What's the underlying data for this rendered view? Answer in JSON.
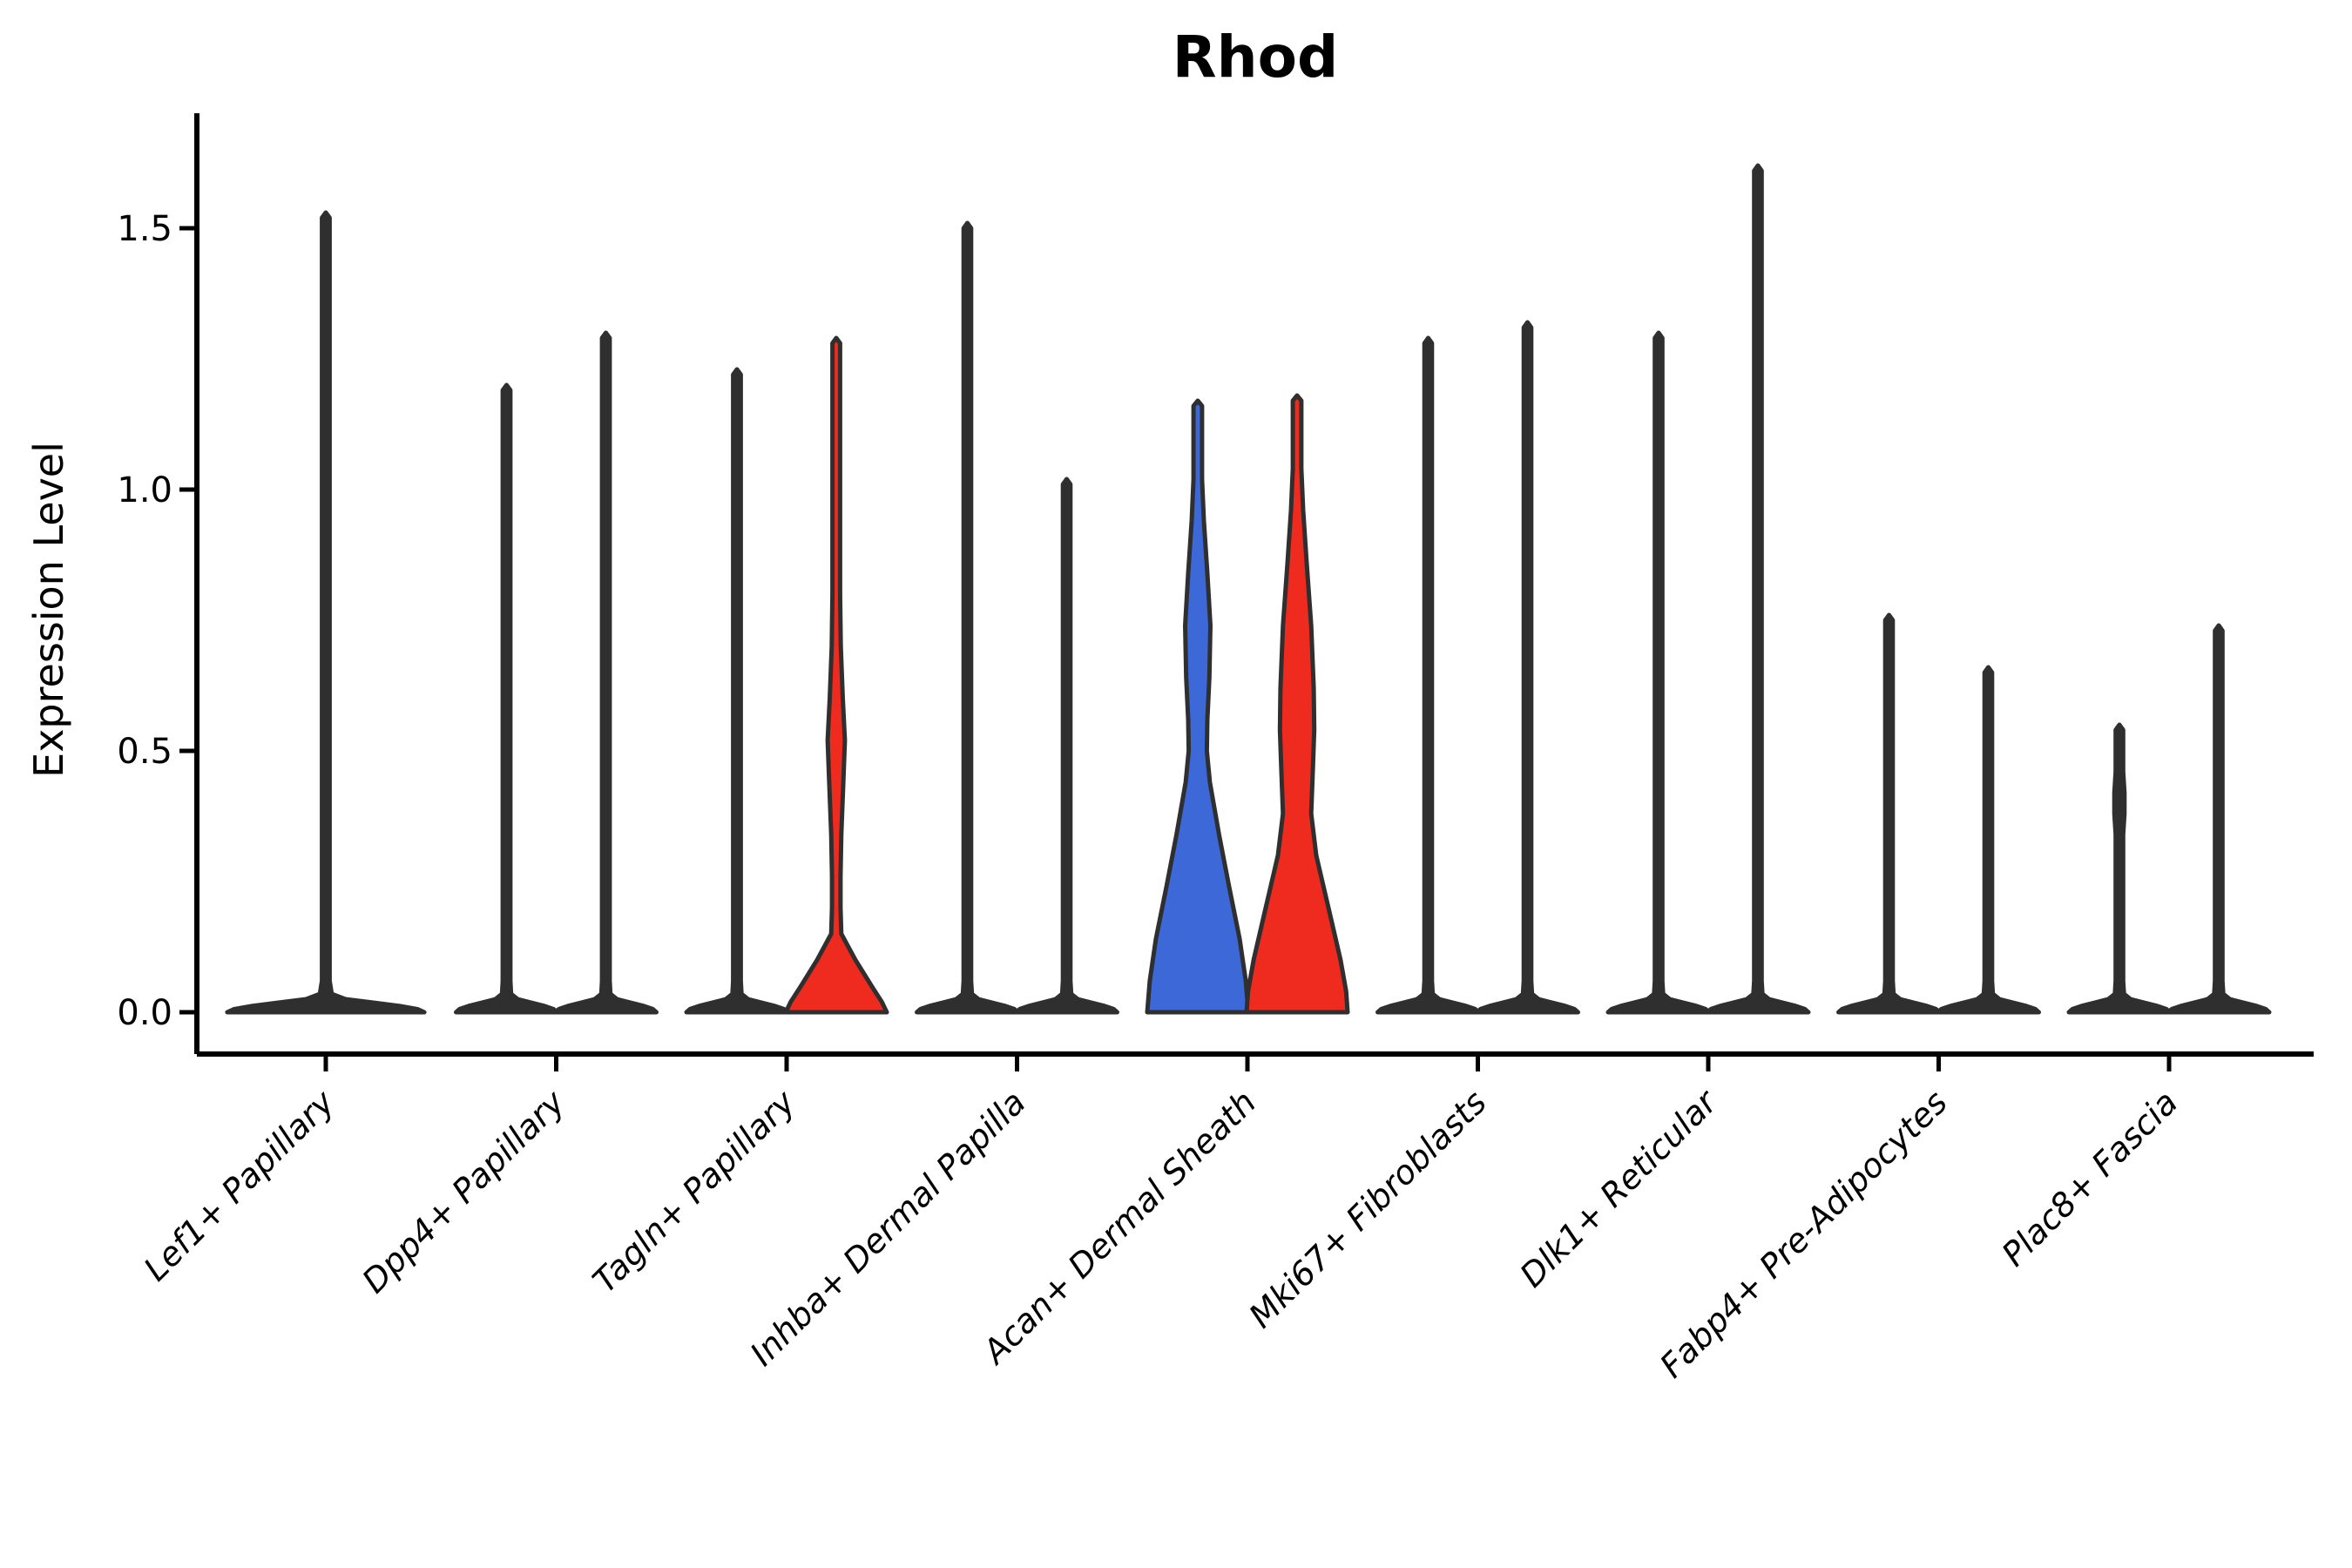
{
  "title": "Rhod",
  "axes": {
    "y_label": "Expression Level",
    "y_ticks": [
      {
        "label": "0.0",
        "value": 0.0
      },
      {
        "label": "0.5",
        "value": 0.5
      },
      {
        "label": "1.0",
        "value": 1.0
      },
      {
        "label": "1.5",
        "value": 1.5
      }
    ],
    "x_categories": [
      "Lef1+ Papillary",
      "Dpp4+ Papillary",
      "Tagln+ Papillary",
      "Inhba+ Dermal Papilla",
      "Acan+ Dermal Sheath",
      "Mki67+ Fibroblasts",
      "Dlk1+ Reticular",
      "Fabp4+ Pre-Adipocytes",
      "Plac8+ Fascia"
    ]
  },
  "colors": {
    "blue_fill": "#3C69D7",
    "red_fill": "#EE2B1E",
    "outline": "#2F2F2F",
    "text": "#000000",
    "background": "#FFFFFF"
  },
  "chart_data": {
    "type": "violin",
    "title": "Rhod",
    "ylabel": "Expression Level",
    "ylim": [
      0,
      1.72
    ],
    "yticks": [
      0.0,
      0.5,
      1.0,
      1.5
    ],
    "grid": false,
    "legend": "none",
    "x_tick_rotation": 45,
    "categories": [
      "Lef1+ Papillary",
      "Dpp4+ Papillary",
      "Tagln+ Papillary",
      "Inhba+ Dermal Papilla",
      "Acan+ Dermal Sheath",
      "Mki67+ Fibroblasts",
      "Dlk1+ Reticular",
      "Fabp4+ Pre-Adipocytes",
      "Plac8+ Fascia"
    ],
    "violins": [
      {
        "category": "Lef1+ Papillary",
        "side": "center",
        "max_expression": 1.53,
        "body_visible": false,
        "fill": "#2F2F2F",
        "width_scale": 1.95,
        "profile": [
          [
            1.53,
            0
          ],
          [
            1.52,
            0.039
          ],
          [
            0.06,
            0.039
          ],
          [
            0.035,
            0.06
          ],
          [
            0.025,
            0.2
          ],
          [
            0.018,
            0.5
          ],
          [
            0.012,
            0.75
          ],
          [
            0.006,
            0.93
          ],
          [
            0,
            1
          ]
        ]
      },
      {
        "category": "Dpp4+ Papillary",
        "side": "left",
        "max_expression": 1.2,
        "body_visible": false,
        "fill": "#2F2F2F",
        "width_scale": 1.0,
        "profile": [
          [
            1.2,
            0
          ],
          [
            1.19,
            0.075
          ],
          [
            0.06,
            0.075
          ],
          [
            0.035,
            0.09
          ],
          [
            0.025,
            0.22
          ],
          [
            0.018,
            0.5
          ],
          [
            0.012,
            0.75
          ],
          [
            0.006,
            0.93
          ],
          [
            0,
            1
          ]
        ]
      },
      {
        "category": "Dpp4+ Papillary",
        "side": "right",
        "max_expression": 1.3,
        "body_visible": false,
        "fill": "#2F2F2F",
        "width_scale": 1.0,
        "profile": [
          [
            1.3,
            0
          ],
          [
            1.29,
            0.075
          ],
          [
            0.06,
            0.075
          ],
          [
            0.035,
            0.09
          ],
          [
            0.025,
            0.22
          ],
          [
            0.018,
            0.5
          ],
          [
            0.012,
            0.75
          ],
          [
            0.006,
            0.93
          ],
          [
            0,
            1
          ]
        ]
      },
      {
        "category": "Tagln+ Papillary",
        "side": "left",
        "max_expression": 1.23,
        "body_visible": false,
        "fill": "#2F2F2F",
        "width_scale": 1.0,
        "profile": [
          [
            1.23,
            0
          ],
          [
            1.22,
            0.075
          ],
          [
            0.06,
            0.075
          ],
          [
            0.035,
            0.09
          ],
          [
            0.025,
            0.22
          ],
          [
            0.018,
            0.5
          ],
          [
            0.012,
            0.75
          ],
          [
            0.006,
            0.93
          ],
          [
            0,
            1
          ]
        ]
      },
      {
        "category": "Tagln+ Papillary",
        "side": "right",
        "max_expression": 1.29,
        "body_visible": true,
        "fill": "#EE2B1E",
        "width_scale": 1.0,
        "profile": [
          [
            1.29,
            0
          ],
          [
            1.28,
            0.075
          ],
          [
            0.8,
            0.075
          ],
          [
            0.7,
            0.09
          ],
          [
            0.6,
            0.13
          ],
          [
            0.52,
            0.17
          ],
          [
            0.44,
            0.14
          ],
          [
            0.34,
            0.1
          ],
          [
            0.26,
            0.085
          ],
          [
            0.2,
            0.085
          ],
          [
            0.15,
            0.1
          ],
          [
            0.1,
            0.38
          ],
          [
            0.05,
            0.7
          ],
          [
            0.02,
            0.9
          ],
          [
            0,
            1
          ]
        ]
      },
      {
        "category": "Inhba+ Dermal Papilla",
        "side": "left",
        "max_expression": 1.51,
        "body_visible": false,
        "fill": "#2F2F2F",
        "width_scale": 1.0,
        "profile": [
          [
            1.51,
            0
          ],
          [
            1.5,
            0.075
          ],
          [
            0.06,
            0.075
          ],
          [
            0.035,
            0.09
          ],
          [
            0.025,
            0.22
          ],
          [
            0.018,
            0.5
          ],
          [
            0.012,
            0.75
          ],
          [
            0.006,
            0.93
          ],
          [
            0,
            1
          ]
        ]
      },
      {
        "category": "Inhba+ Dermal Papilla",
        "side": "right",
        "max_expression": 1.02,
        "body_visible": false,
        "fill": "#2F2F2F",
        "width_scale": 1.0,
        "profile": [
          [
            1.02,
            0
          ],
          [
            1.01,
            0.075
          ],
          [
            0.06,
            0.075
          ],
          [
            0.035,
            0.09
          ],
          [
            0.025,
            0.22
          ],
          [
            0.018,
            0.5
          ],
          [
            0.012,
            0.75
          ],
          [
            0.006,
            0.93
          ],
          [
            0,
            1
          ]
        ]
      },
      {
        "category": "Acan+ Dermal Sheath",
        "side": "left",
        "max_expression": 1.17,
        "body_visible": true,
        "fill": "#3C69D7",
        "width_scale": 1.0,
        "profile": [
          [
            1.17,
            0
          ],
          [
            1.16,
            0.085
          ],
          [
            1.02,
            0.085
          ],
          [
            0.94,
            0.12
          ],
          [
            0.84,
            0.19
          ],
          [
            0.74,
            0.25
          ],
          [
            0.64,
            0.23
          ],
          [
            0.56,
            0.19
          ],
          [
            0.5,
            0.18
          ],
          [
            0.44,
            0.24
          ],
          [
            0.34,
            0.42
          ],
          [
            0.24,
            0.62
          ],
          [
            0.14,
            0.83
          ],
          [
            0.06,
            0.95
          ],
          [
            0,
            1
          ]
        ]
      },
      {
        "category": "Acan+ Dermal Sheath",
        "side": "right",
        "max_expression": 1.18,
        "body_visible": true,
        "fill": "#EE2B1E",
        "width_scale": 1.0,
        "profile": [
          [
            1.18,
            0
          ],
          [
            1.17,
            0.085
          ],
          [
            1.04,
            0.085
          ],
          [
            0.96,
            0.12
          ],
          [
            0.86,
            0.19
          ],
          [
            0.74,
            0.28
          ],
          [
            0.62,
            0.33
          ],
          [
            0.54,
            0.34
          ],
          [
            0.46,
            0.31
          ],
          [
            0.38,
            0.28
          ],
          [
            0.3,
            0.38
          ],
          [
            0.2,
            0.62
          ],
          [
            0.1,
            0.86
          ],
          [
            0.04,
            0.97
          ],
          [
            0,
            1
          ]
        ]
      },
      {
        "category": "Mki67+ Fibroblasts",
        "side": "left",
        "max_expression": 1.29,
        "body_visible": false,
        "fill": "#2F2F2F",
        "width_scale": 1.0,
        "profile": [
          [
            1.29,
            0
          ],
          [
            1.28,
            0.075
          ],
          [
            0.06,
            0.075
          ],
          [
            0.035,
            0.09
          ],
          [
            0.025,
            0.22
          ],
          [
            0.018,
            0.5
          ],
          [
            0.012,
            0.75
          ],
          [
            0.006,
            0.93
          ],
          [
            0,
            1
          ]
        ]
      },
      {
        "category": "Mki67+ Fibroblasts",
        "side": "right",
        "max_expression": 1.32,
        "body_visible": false,
        "fill": "#2F2F2F",
        "width_scale": 1.0,
        "profile": [
          [
            1.32,
            0
          ],
          [
            1.31,
            0.075
          ],
          [
            0.06,
            0.075
          ],
          [
            0.035,
            0.09
          ],
          [
            0.025,
            0.22
          ],
          [
            0.018,
            0.5
          ],
          [
            0.012,
            0.75
          ],
          [
            0.006,
            0.93
          ],
          [
            0,
            1
          ]
        ]
      },
      {
        "category": "Dlk1+ Reticular",
        "side": "left",
        "max_expression": 1.3,
        "body_visible": false,
        "fill": "#2F2F2F",
        "width_scale": 1.0,
        "profile": [
          [
            1.3,
            0
          ],
          [
            1.29,
            0.075
          ],
          [
            0.06,
            0.075
          ],
          [
            0.035,
            0.09
          ],
          [
            0.025,
            0.22
          ],
          [
            0.018,
            0.5
          ],
          [
            0.012,
            0.75
          ],
          [
            0.006,
            0.93
          ],
          [
            0,
            1
          ]
        ]
      },
      {
        "category": "Dlk1+ Reticular",
        "side": "right",
        "max_expression": 1.62,
        "body_visible": false,
        "fill": "#2F2F2F",
        "width_scale": 1.0,
        "profile": [
          [
            1.62,
            0
          ],
          [
            1.61,
            0.075
          ],
          [
            0.06,
            0.075
          ],
          [
            0.035,
            0.09
          ],
          [
            0.025,
            0.22
          ],
          [
            0.018,
            0.5
          ],
          [
            0.012,
            0.75
          ],
          [
            0.006,
            0.93
          ],
          [
            0,
            1
          ]
        ]
      },
      {
        "category": "Fabp4+ Pre-Adipocytes",
        "side": "left",
        "max_expression": 0.76,
        "body_visible": false,
        "fill": "#2F2F2F",
        "width_scale": 1.0,
        "profile": [
          [
            0.76,
            0
          ],
          [
            0.75,
            0.075
          ],
          [
            0.06,
            0.075
          ],
          [
            0.035,
            0.09
          ],
          [
            0.025,
            0.22
          ],
          [
            0.018,
            0.5
          ],
          [
            0.012,
            0.75
          ],
          [
            0.006,
            0.93
          ],
          [
            0,
            1
          ]
        ]
      },
      {
        "category": "Fabp4+ Pre-Adipocytes",
        "side": "right",
        "max_expression": 0.66,
        "body_visible": false,
        "fill": "#2F2F2F",
        "width_scale": 1.0,
        "profile": [
          [
            0.66,
            0
          ],
          [
            0.65,
            0.075
          ],
          [
            0.06,
            0.075
          ],
          [
            0.035,
            0.09
          ],
          [
            0.025,
            0.22
          ],
          [
            0.018,
            0.5
          ],
          [
            0.012,
            0.75
          ],
          [
            0.006,
            0.93
          ],
          [
            0,
            1
          ]
        ]
      },
      {
        "category": "Plac8+ Fascia",
        "side": "left",
        "max_expression": 0.55,
        "body_visible": false,
        "fill": "#2F2F2F",
        "width_scale": 1.0,
        "profile": [
          [
            0.55,
            0
          ],
          [
            0.54,
            0.075
          ],
          [
            0.46,
            0.075
          ],
          [
            0.42,
            0.1
          ],
          [
            0.38,
            0.1
          ],
          [
            0.34,
            0.075
          ],
          [
            0.06,
            0.075
          ],
          [
            0.035,
            0.09
          ],
          [
            0.025,
            0.22
          ],
          [
            0.018,
            0.5
          ],
          [
            0.012,
            0.75
          ],
          [
            0.006,
            0.93
          ],
          [
            0,
            1
          ]
        ]
      },
      {
        "category": "Plac8+ Fascia",
        "side": "right",
        "max_expression": 0.74,
        "body_visible": false,
        "fill": "#2F2F2F",
        "width_scale": 1.0,
        "profile": [
          [
            0.74,
            0
          ],
          [
            0.73,
            0.075
          ],
          [
            0.06,
            0.075
          ],
          [
            0.035,
            0.09
          ],
          [
            0.025,
            0.22
          ],
          [
            0.018,
            0.5
          ],
          [
            0.012,
            0.75
          ],
          [
            0.006,
            0.93
          ],
          [
            0,
            1
          ]
        ]
      }
    ]
  }
}
